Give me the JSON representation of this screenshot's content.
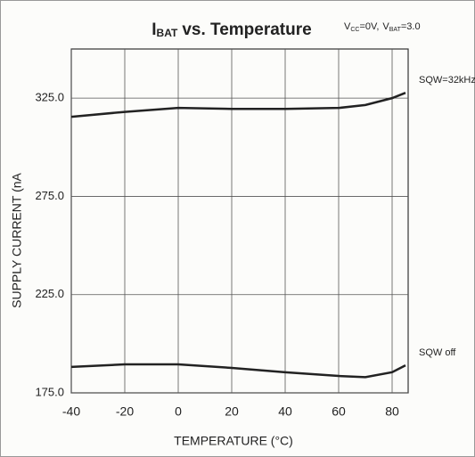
{
  "chart_data": {
    "type": "line",
    "title": {
      "symbol": "I",
      "subscript": "BAT",
      "text": "vs. Temperature"
    },
    "conditions": [
      {
        "symbol": "V",
        "subscript": "CC",
        "text": "=0V,"
      },
      {
        "symbol": "V",
        "subscript": "BAT",
        "text": "=3.0"
      }
    ],
    "x_label": "TEMPERATURE (°C)",
    "y_label": "SUPPLY CURRENT (nA",
    "x": [
      -40,
      -20,
      0,
      20,
      40,
      60,
      70,
      80,
      85
    ],
    "series": [
      {
        "name": "SQW=32kHz",
        "color": "#222222",
        "values": [
          315.5,
          318,
          320,
          319.5,
          319.5,
          320,
          321.5,
          325,
          327.7
        ]
      },
      {
        "name": "SQW off",
        "color": "#222222",
        "values": [
          188.2,
          189.5,
          189.5,
          187.7,
          185.5,
          183.6,
          183,
          185.5,
          189
        ]
      }
    ],
    "xlim": [
      -40,
      86
    ],
    "ylim": [
      175,
      350
    ],
    "xticks": [
      -40,
      -20,
      0,
      20,
      40,
      60,
      80
    ],
    "yticks": [
      {
        "value": 175,
        "label": "175.0"
      },
      {
        "value": 225,
        "label": "225.0"
      },
      {
        "value": 275,
        "label": "275.0"
      },
      {
        "value": 325,
        "label": "325.0"
      }
    ],
    "grid": true
  }
}
